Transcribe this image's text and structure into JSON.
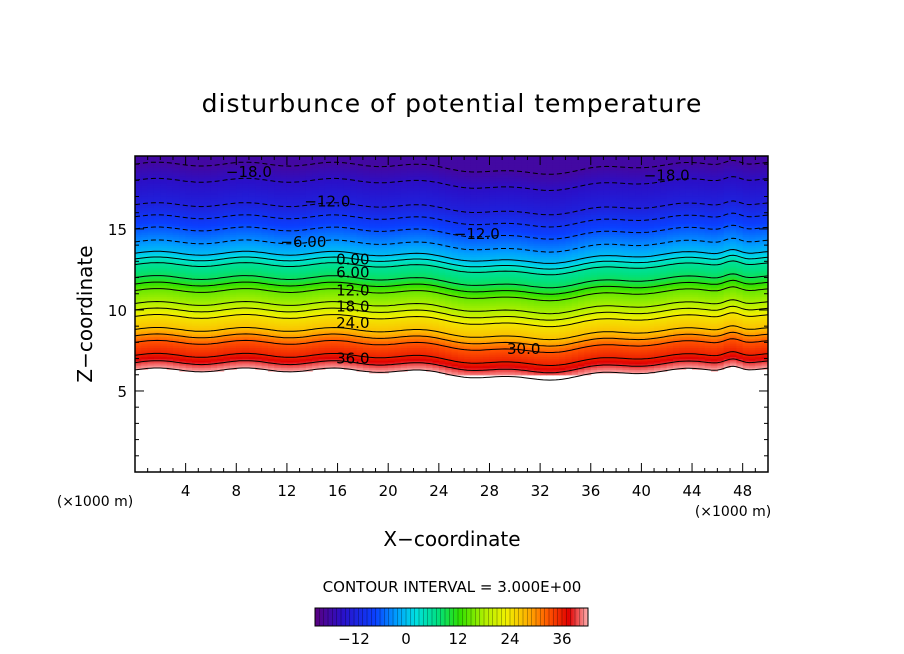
{
  "chart_data": {
    "type": "heatmap",
    "title": "disturbunce of potential temperature",
    "xlabel": "X−coordinate",
    "ylabel": "Z−coordinate",
    "x_unit": "(×1000 m)",
    "z_unit": "(×1000 m)",
    "xlim": [
      0,
      50
    ],
    "ylim": [
      0,
      19.5
    ],
    "x_ticks": [
      4,
      8,
      12,
      16,
      20,
      24,
      28,
      32,
      36,
      40,
      44,
      48
    ],
    "y_ticks": [
      5,
      10,
      15
    ],
    "contour_interval_text": "CONTOUR INTERVAL = 3.000E+00",
    "contour_interval": 3.0,
    "colorbar": {
      "min": -21,
      "max": 42,
      "tick_values": [
        -12,
        0,
        12,
        24,
        36
      ],
      "tick_labels": [
        "−12",
        "0",
        "12",
        "24",
        "36"
      ]
    },
    "field_description_points": {
      "data_top_z": 19.5,
      "base_profile_z": [
        6.3,
        7.2,
        8.0,
        8.8,
        9.6,
        10.4,
        11.2,
        12.0,
        12.8,
        13.5,
        14.2,
        15.0,
        16.5,
        18.0,
        19.0
      ],
      "base_profile_value": [
        42,
        36,
        33,
        27,
        24,
        18,
        15,
        9,
        6,
        0,
        -3,
        -6,
        -12,
        -15,
        -18
      ]
    },
    "contour_labels": [
      {
        "text": "−18.0",
        "x": 9.0,
        "z": 18.5
      },
      {
        "text": "−12.0",
        "x": 15.2,
        "z": 16.7
      },
      {
        "text": "−6.00",
        "x": 13.3,
        "z": 14.2
      },
      {
        "text": "0.00",
        "x": 17.2,
        "z": 13.1
      },
      {
        "text": "6.00",
        "x": 17.2,
        "z": 12.3
      },
      {
        "text": "12.0",
        "x": 17.2,
        "z": 11.2
      },
      {
        "text": "18.0",
        "x": 17.2,
        "z": 10.2
      },
      {
        "text": "24.0",
        "x": 17.2,
        "z": 9.2
      },
      {
        "text": "36.0",
        "x": 17.2,
        "z": 7.0
      },
      {
        "text": "30.0",
        "x": 30.7,
        "z": 7.6
      },
      {
        "text": "−12.0",
        "x": 27.0,
        "z": 14.7
      },
      {
        "text": "−18.0",
        "x": 42.0,
        "z": 18.3
      }
    ]
  }
}
